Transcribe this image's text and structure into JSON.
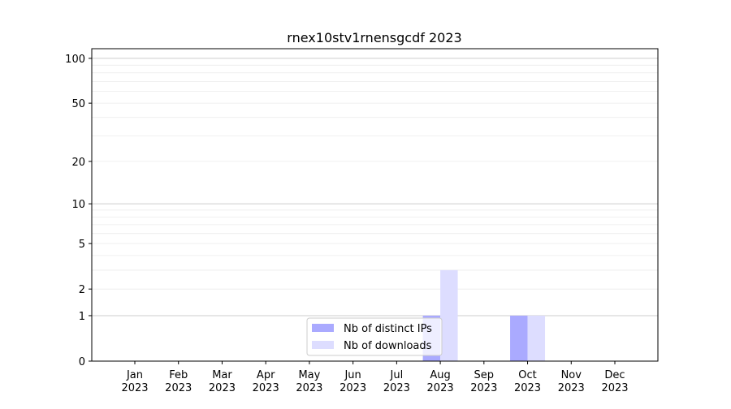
{
  "chart_data": {
    "type": "bar",
    "title": "rnex10stv1rnensgcdf 2023",
    "categories": [
      "Jan\n2023",
      "Feb\n2023",
      "Mar\n2023",
      "Apr\n2023",
      "May\n2023",
      "Jun\n2023",
      "Jul\n2023",
      "Aug\n2023",
      "Sep\n2023",
      "Oct\n2023",
      "Nov\n2023",
      "Dec\n2023"
    ],
    "series": [
      {
        "name": "Nb of distinct IPs",
        "color": "#aaaaff",
        "values": [
          0,
          0,
          0,
          0,
          0,
          0,
          0,
          1,
          0,
          1,
          0,
          0
        ]
      },
      {
        "name": "Nb of downloads",
        "color": "#ddddff",
        "values": [
          0,
          0,
          0,
          0,
          0,
          0,
          0,
          3,
          0,
          1,
          0,
          0
        ]
      }
    ],
    "yscale": "symlog",
    "yticks": [
      0,
      1,
      2,
      5,
      10,
      20,
      50,
      100
    ],
    "ylim": [
      0,
      116
    ],
    "grid": true,
    "legend": "lower-center",
    "xlabel": "",
    "ylabel": ""
  }
}
